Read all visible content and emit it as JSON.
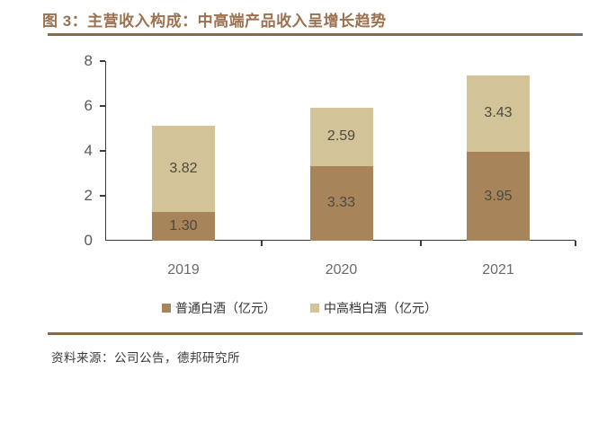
{
  "figure": {
    "title": "图 3：主营收入构成：中高端产品收入呈增长趋势",
    "source": "资料来源：公司公告，德邦研究所"
  },
  "colors": {
    "title_brown": "#9C7150",
    "rule_brown": "#8A6A45",
    "rule_tip_gray": "#70706E",
    "axis": "#3B3B3B",
    "y_tick_label": "#595959",
    "category_label": "#6A6A6A",
    "data_label": "#4C4A40",
    "legend_text": "#333333",
    "source_text": "#3A3A3A",
    "series_dark_brown": "#A7845A",
    "series_tan": "#D2C498"
  },
  "chart_data": {
    "type": "bar",
    "stacked": true,
    "title": "主营收入构成：中高端产品收入呈增长趋势",
    "figure_label": "图 3",
    "categories": [
      "2019",
      "2020",
      "2021"
    ],
    "series": [
      {
        "name": "普通白酒（亿元）",
        "color": "#A7845A",
        "values": [
          1.3,
          3.33,
          3.95
        ]
      },
      {
        "name": "中高档白酒（亿元）",
        "color": "#D2C498",
        "values": [
          3.82,
          2.59,
          3.43
        ]
      }
    ],
    "totals": [
      5.12,
      5.92,
      7.38
    ],
    "xlabel": "",
    "ylabel": "",
    "ylim": [
      0,
      8
    ],
    "yticks": [
      0,
      2,
      4,
      6,
      8
    ],
    "grid": false,
    "legend_position": "bottom",
    "data_labels": true,
    "data_label_format": "0.00"
  }
}
